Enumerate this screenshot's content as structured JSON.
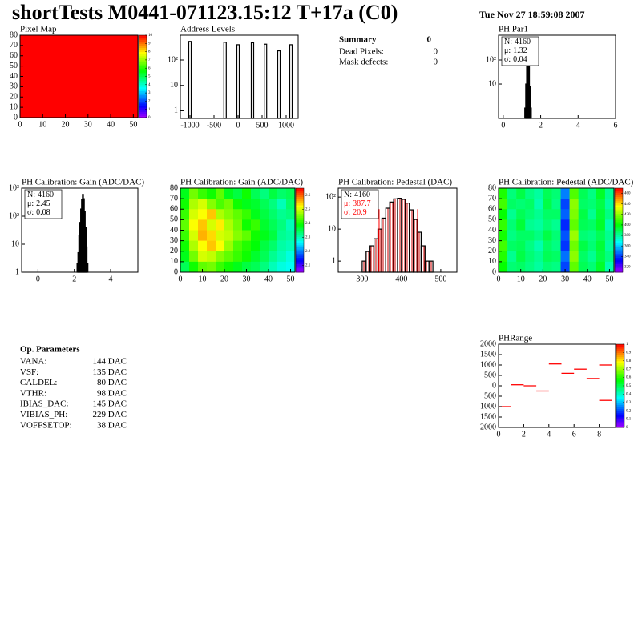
{
  "header": {
    "title": "shortTests M0441-071123.15:12 T+17a (C0)",
    "date": "Tue Nov 27 18:59:08 2007"
  },
  "summary": {
    "title": "Summary",
    "value": 0,
    "rows": [
      {
        "label": "Dead Pixels:",
        "value": 0
      },
      {
        "label": "Mask defects:",
        "value": 0
      }
    ]
  },
  "op_parameters": {
    "title": "Op. Parameters",
    "rows": [
      {
        "name": "VANA:",
        "value": "144 DAC"
      },
      {
        "name": "VSF:",
        "value": "135 DAC"
      },
      {
        "name": "CALDEL:",
        "value": "80 DAC"
      },
      {
        "name": "VTHR:",
        "value": "98 DAC"
      },
      {
        "name": "IBIAS_DAC:",
        "value": "145 DAC"
      },
      {
        "name": "VIBIAS_PH:",
        "value": "229 DAC"
      },
      {
        "name": "VOFFSETOP:",
        "value": "38 DAC"
      }
    ]
  },
  "chart_data": [
    {
      "type": "heatmap",
      "title": "Pixel Map",
      "values": [
        [
          10
        ]
      ],
      "xlim": [
        0,
        52
      ],
      "ylim": [
        0,
        80
      ],
      "xticks": [
        0,
        10,
        20,
        30,
        40,
        50
      ],
      "yticks": [
        0,
        10,
        20,
        30,
        40,
        50,
        60,
        70,
        80
      ],
      "zlim": [
        0,
        10
      ],
      "zticks": [
        0,
        1,
        2,
        3,
        4,
        5,
        6,
        7,
        8,
        9,
        10
      ]
    },
    {
      "type": "spikes",
      "title": "Address Levels",
      "x": [
        -1000,
        -270,
        0,
        300,
        570,
        850,
        1100
      ],
      "values": [
        540,
        500,
        400,
        480,
        420,
        230,
        400
      ],
      "logy": true,
      "xlim": [
        -1200,
        1250
      ],
      "ylim": [
        0.5,
        950
      ],
      "xticks": [
        -1000,
        -500,
        0,
        500,
        1000
      ],
      "yticks": [
        1,
        10,
        {
          "value": 100,
          "label": "10²"
        }
      ],
      "color": "#000000"
    },
    {
      "type": "histogram",
      "title": "PH Par1",
      "bins": [
        1.15,
        1.2,
        1.25,
        1.3,
        1.35,
        1.4,
        1.45,
        1.5
      ],
      "values": [
        1,
        10,
        150,
        580,
        120,
        8,
        1
      ],
      "logy": true,
      "xlim": [
        -0.25,
        6
      ],
      "ylim": [
        0.37,
        1080
      ],
      "xticks": [
        0,
        2,
        4,
        6
      ],
      "yticks": [
        10,
        {
          "value": 100,
          "label": "10²"
        }
      ],
      "stats": [
        {
          "label": "N:",
          "value": 4160
        },
        {
          "label": "μ:",
          "value": 1.32
        },
        {
          "label": "σ:",
          "value": 0.04
        }
      ],
      "fill": "none"
    },
    {
      "type": "histogram",
      "title": "PH Calibration: Gain (ADC/DAC)",
      "bins": [
        2.1,
        2.15,
        2.2,
        2.25,
        2.3,
        2.35,
        2.4,
        2.45,
        2.5,
        2.55,
        2.6,
        2.65,
        2.7,
        2.75,
        2.8
      ],
      "values": [
        1,
        2,
        5,
        20,
        60,
        180,
        400,
        600,
        420,
        150,
        40,
        8,
        2,
        1
      ],
      "logy": true,
      "xlim": [
        -0.9,
        5.5
      ],
      "ylim": [
        1,
        1000
      ],
      "xticks": [
        0,
        2,
        4
      ],
      "yticks": [
        1,
        10,
        {
          "value": 100,
          "label": "10²"
        },
        {
          "value": 1000,
          "label": "10³"
        }
      ],
      "stats": [
        {
          "label": "N:",
          "value": 4160
        },
        {
          "label": "μ:",
          "value": 2.45
        },
        {
          "label": "σ:",
          "value": 0.08
        }
      ],
      "fill": "none"
    },
    {
      "type": "heatmap",
      "title": "PH Calibration: Gain (ADC/DAC)",
      "values": [
        [
          2.38,
          2.45,
          2.42,
          2.4,
          2.44,
          2.38,
          2.36,
          2.4,
          2.35,
          2.33,
          2.36,
          2.34,
          2.35
        ],
        [
          2.4,
          2.48,
          2.5,
          2.46,
          2.43,
          2.45,
          2.4,
          2.38,
          2.37,
          2.35,
          2.33,
          2.3,
          2.34
        ],
        [
          2.42,
          2.5,
          2.52,
          2.55,
          2.48,
          2.46,
          2.44,
          2.42,
          2.38,
          2.36,
          2.34,
          2.32,
          2.33
        ],
        [
          2.44,
          2.52,
          2.55,
          2.5,
          2.53,
          2.48,
          2.45,
          2.4,
          2.42,
          2.37,
          2.35,
          2.33,
          2.3
        ],
        [
          2.42,
          2.5,
          2.56,
          2.54,
          2.5,
          2.49,
          2.46,
          2.44,
          2.4,
          2.38,
          2.36,
          2.32,
          2.31
        ],
        [
          2.4,
          2.48,
          2.52,
          2.55,
          2.52,
          2.47,
          2.43,
          2.41,
          2.39,
          2.36,
          2.34,
          2.31,
          2.3
        ],
        [
          2.38,
          2.45,
          2.5,
          2.49,
          2.46,
          2.44,
          2.42,
          2.4,
          2.37,
          2.35,
          2.32,
          2.3,
          2.28
        ],
        [
          2.35,
          2.4,
          2.44,
          2.45,
          2.42,
          2.4,
          2.38,
          2.36,
          2.35,
          2.33,
          2.3,
          2.28,
          2.27
        ]
      ],
      "xlim": [
        0,
        52
      ],
      "ylim": [
        0,
        80
      ],
      "xticks": [
        0,
        10,
        20,
        30,
        40,
        50
      ],
      "yticks": [
        0,
        10,
        20,
        30,
        40,
        50,
        60,
        70,
        80
      ],
      "zlim": [
        2.05,
        2.65
      ],
      "zticks": [
        2.1,
        2.2,
        2.3,
        2.4,
        2.5,
        2.6
      ]
    },
    {
      "type": "histogram",
      "title": "PH Calibration: Pedestal (DAC)",
      "bins": [
        300,
        310,
        320,
        330,
        340,
        350,
        360,
        370,
        380,
        390,
        400,
        410,
        420,
        430,
        440,
        450,
        460,
        470,
        480
      ],
      "values": [
        1,
        2,
        3,
        5,
        10,
        22,
        45,
        70,
        88,
        92,
        85,
        65,
        40,
        20,
        8,
        3,
        1,
        1
      ],
      "logy": true,
      "xlim": [
        239,
        541
      ],
      "ylim": [
        0.45,
        190
      ],
      "xticks": [
        300,
        400,
        500
      ],
      "yticks": [
        1,
        10,
        {
          "value": 100,
          "label": "10²"
        }
      ],
      "stats": [
        {
          "label": "N:",
          "value": 4160
        },
        {
          "label": "μ:",
          "value": 387.7,
          "color": "#ff0000"
        },
        {
          "label": "σ:",
          "value": 20.9,
          "color": "#ff0000"
        }
      ],
      "fill": "hatch",
      "cut_lines": [
        343,
        441
      ]
    },
    {
      "type": "heatmap",
      "title": "PH Calibration: Pedestal (ADC/DAC)",
      "values": [
        [
          405,
          385,
          392,
          384,
          380,
          390,
          386,
          350,
          412,
          390,
          384,
          396,
          382
        ],
        [
          410,
          388,
          386,
          388,
          378,
          392,
          384,
          342,
          420,
          388,
          386,
          392,
          380
        ],
        [
          402,
          382,
          390,
          386,
          382,
          388,
          388,
          346,
          418,
          392,
          382,
          394,
          384
        ],
        [
          408,
          386,
          394,
          382,
          380,
          386,
          382,
          338,
          414,
          390,
          388,
          396,
          378
        ],
        [
          404,
          384,
          388,
          388,
          384,
          392,
          386,
          344,
          422,
          386,
          384,
          390,
          382
        ],
        [
          410,
          388,
          390,
          384,
          378,
          388,
          384,
          340,
          416,
          392,
          386,
          394,
          380
        ],
        [
          406,
          382,
          392,
          386,
          382,
          390,
          388,
          348,
          420,
          388,
          382,
          392,
          384
        ],
        [
          402,
          386,
          388,
          384,
          380,
          386,
          384,
          342,
          414,
          390,
          386,
          396,
          378
        ]
      ],
      "xlim": [
        0,
        52
      ],
      "ylim": [
        0,
        80
      ],
      "xticks": [
        0,
        10,
        20,
        30,
        40,
        50
      ],
      "yticks": [
        0,
        10,
        20,
        30,
        40,
        50,
        60,
        70,
        80
      ],
      "zlim": [
        310,
        470
      ],
      "zticks": [
        320,
        340,
        360,
        380,
        400,
        420,
        440,
        460
      ]
    },
    {
      "type": "segments",
      "title": "PHRange",
      "x": [
        0.5,
        1.5,
        2.5,
        3.5,
        4.5,
        5.5,
        6.5,
        7.5,
        8.5,
        8.5
      ],
      "values": [
        -1000,
        50,
        0,
        -250,
        1050,
        600,
        800,
        350,
        1000,
        -700
      ],
      "color": "#ff0000",
      "xlim": [
        0,
        9.3
      ],
      "ylim": [
        -2000,
        2000
      ],
      "xticks": [
        0,
        2,
        4,
        6,
        8
      ],
      "yticks": [
        2000,
        1500,
        1000,
        500,
        0,
        {
          "value": -500,
          "label": "500"
        },
        {
          "value": -1000,
          "label": "1000"
        },
        {
          "value": -1500,
          "label": "1500"
        },
        {
          "value": -2000,
          "label": "2000"
        }
      ],
      "zlim": [
        0,
        1
      ],
      "zticks": [
        0,
        0.1,
        0.2,
        0.3,
        0.4,
        0.5,
        0.6,
        0.7,
        0.8,
        0.9,
        1
      ]
    }
  ]
}
